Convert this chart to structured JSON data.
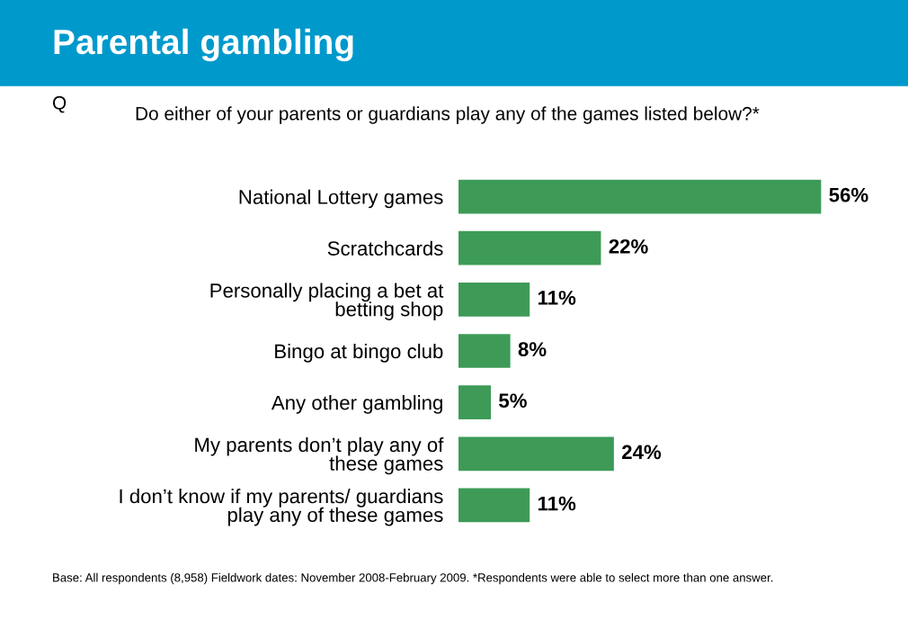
{
  "chart_data": {
    "type": "bar",
    "orientation": "horizontal",
    "title": "Parental gambling",
    "subtitle": "Do either of your parents or guardians play any of the games listed below?*",
    "categories": [
      "National Lottery games",
      "Scratchcards",
      "Personally placing a bet at\nbetting shop",
      "Bingo at bingo club",
      "Any other gambling",
      "My parents don’t play any of\nthese games",
      "I don’t know if my parents/ guardians\nplay any of these games"
    ],
    "values": [
      56,
      22,
      11,
      8,
      5,
      24,
      11
    ],
    "value_labels": [
      "56%",
      "22%",
      "11%",
      "8%",
      "5%",
      "24%",
      "11%"
    ],
    "color": "#3d9b57",
    "annotations": [
      "Q",
      "Base: All respondents (8,958) Fieldwork dates: November 2008-February 2009. *Respondents were able to select more than one answer."
    ]
  }
}
